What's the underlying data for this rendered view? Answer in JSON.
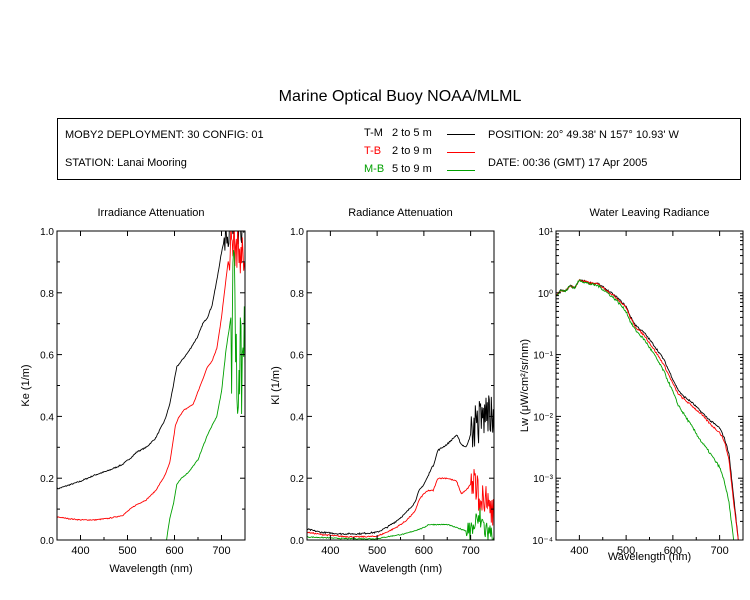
{
  "title": "Marine Optical Buoy NOAA/MLML",
  "info": {
    "deployment": "MOBY2 DEPLOYMENT: 30 CONFIG: 01",
    "station": "STATION: Lanai Mooring",
    "position": "POSITION: 20° 49.38' N   157° 10.93' W",
    "date": "DATE: 00:36 (GMT) 17 Apr 2005"
  },
  "legend": [
    {
      "code": "T-M",
      "range": "2 to 5  m",
      "color": "#000000"
    },
    {
      "code": "T-B",
      "range": "2 to 9  m",
      "color": "#ff0000"
    },
    {
      "code": "M-B",
      "range": "5 to 9  m",
      "color": "#00a000"
    }
  ],
  "chart_data": [
    {
      "type": "line",
      "title": "Irradiance Attenuation",
      "xlabel": "Wavelength (nm)",
      "ylabel": "Ke  (1/m)",
      "xlim": [
        350,
        750
      ],
      "ylim": [
        0,
        1.0
      ],
      "xticks": [
        400,
        500,
        600,
        700
      ],
      "yticks": [
        0.0,
        0.2,
        0.4,
        0.6,
        0.8,
        1.0
      ],
      "ytick_labels": [
        "0.0",
        "0.2",
        "0.4",
        "0.6",
        "0.8",
        "1.0"
      ],
      "series": [
        {
          "name": "T-M",
          "color": "#000000",
          "noise": 0.004,
          "noise_above": 705,
          "noise_amp": 0.05,
          "x": [
            350,
            370,
            400,
            430,
            460,
            490,
            510,
            520,
            540,
            560,
            580,
            590,
            600,
            605,
            615,
            630,
            650,
            660,
            670,
            680,
            690,
            700,
            710,
            720,
            730,
            740,
            750
          ],
          "y": [
            0.165,
            0.175,
            0.19,
            0.21,
            0.225,
            0.245,
            0.27,
            0.285,
            0.3,
            0.33,
            0.39,
            0.44,
            0.52,
            0.56,
            0.58,
            0.61,
            0.66,
            0.7,
            0.72,
            0.76,
            0.84,
            0.93,
            1.0,
            1.0,
            1.0,
            1.0,
            1.0
          ]
        },
        {
          "name": "T-B",
          "color": "#ff0000",
          "noise": 0.003,
          "noise_above": 715,
          "noise_amp": 0.07,
          "x": [
            350,
            370,
            400,
            430,
            460,
            490,
            510,
            520,
            540,
            560,
            580,
            590,
            598,
            602,
            610,
            620,
            640,
            660,
            670,
            680,
            690,
            700,
            710,
            720,
            730,
            740,
            750
          ],
          "y": [
            0.075,
            0.07,
            0.065,
            0.065,
            0.07,
            0.08,
            0.105,
            0.115,
            0.13,
            0.16,
            0.21,
            0.25,
            0.33,
            0.37,
            0.4,
            0.42,
            0.44,
            0.52,
            0.56,
            0.58,
            0.62,
            0.72,
            0.85,
            0.97,
            0.95,
            0.93,
            0.9
          ]
        },
        {
          "name": "M-B",
          "color": "#00a000",
          "noise": 0.003,
          "noise_above": 720,
          "noise_amp": 0.28,
          "x": [
            583,
            590,
            598,
            605,
            615,
            630,
            650,
            660,
            670,
            680,
            690,
            700,
            710,
            720,
            730,
            740,
            750
          ],
          "y": [
            0.0,
            0.07,
            0.12,
            0.18,
            0.2,
            0.22,
            0.26,
            0.3,
            0.34,
            0.37,
            0.4,
            0.48,
            0.62,
            0.72,
            0.7,
            0.6,
            0.55
          ]
        }
      ]
    },
    {
      "type": "line",
      "title": "Radiance Attenuation",
      "xlabel": "Wavelength (nm)",
      "ylabel": "Kl  (1/m)",
      "xlim": [
        350,
        750
      ],
      "ylim": [
        0,
        1.0
      ],
      "xticks": [
        400,
        500,
        600,
        700
      ],
      "yticks": [
        0.0,
        0.2,
        0.4,
        0.6,
        0.8,
        1.0
      ],
      "ytick_labels": [
        "0.0",
        "0.2",
        "0.4",
        "0.6",
        "0.8",
        "1.0"
      ],
      "series": [
        {
          "name": "T-M",
          "color": "#000000",
          "noise": 0.005,
          "noise_above": 700,
          "noise_amp": 0.08,
          "x": [
            350,
            380,
            420,
            460,
            500,
            520,
            540,
            560,
            580,
            590,
            600,
            610,
            615,
            620,
            630,
            650,
            670,
            680,
            690,
            700,
            710,
            720,
            730,
            740,
            750
          ],
          "y": [
            0.035,
            0.025,
            0.02,
            0.02,
            0.025,
            0.04,
            0.06,
            0.085,
            0.12,
            0.16,
            0.18,
            0.21,
            0.23,
            0.24,
            0.29,
            0.31,
            0.34,
            0.31,
            0.3,
            0.34,
            0.38,
            0.38,
            0.4,
            0.42,
            0.34
          ]
        },
        {
          "name": "T-B",
          "color": "#ff0000",
          "noise": 0.004,
          "noise_above": 700,
          "noise_amp": 0.06,
          "x": [
            350,
            380,
            420,
            460,
            500,
            520,
            540,
            560,
            580,
            590,
            600,
            610,
            620,
            630,
            650,
            670,
            680,
            690,
            700,
            710,
            720,
            730,
            740,
            750
          ],
          "y": [
            0.025,
            0.018,
            0.012,
            0.01,
            0.012,
            0.025,
            0.04,
            0.06,
            0.09,
            0.13,
            0.15,
            0.16,
            0.16,
            0.2,
            0.2,
            0.19,
            0.15,
            0.16,
            0.18,
            0.17,
            0.14,
            0.11,
            0.12,
            0.1
          ]
        },
        {
          "name": "M-B",
          "color": "#00a000",
          "noise": 0.003,
          "noise_above": 690,
          "noise_amp": 0.04,
          "x": [
            350,
            380,
            420,
            460,
            500,
            520,
            540,
            560,
            580,
            600,
            610,
            620,
            630,
            650,
            670,
            690,
            700,
            710,
            720,
            730,
            740,
            750
          ],
          "y": [
            0.01,
            0.008,
            0.005,
            0.004,
            0.004,
            0.01,
            0.015,
            0.02,
            0.03,
            0.04,
            0.05,
            0.05,
            0.05,
            0.05,
            0.04,
            0.03,
            0.03,
            0.05,
            0.07,
            0.04,
            0.02,
            0.01
          ]
        }
      ]
    },
    {
      "type": "line",
      "title": "Water Leaving Radiance",
      "xlabel": "Wavelength (nm)",
      "ylabel": "Lw (μW/cm²/sr/nm)",
      "scale": "log",
      "xlim": [
        350,
        750
      ],
      "ylim": [
        0.0001,
        10
      ],
      "xticks": [
        400,
        500,
        600,
        700
      ],
      "yticks": [
        0.0001,
        0.001,
        0.01,
        0.1,
        1,
        10
      ],
      "ytick_labels": [
        "10⁻⁴",
        "10⁻³",
        "10⁻²",
        "10⁻¹",
        "10⁰",
        "10¹"
      ],
      "series": [
        {
          "name": "T-M",
          "color": "#000000",
          "noise": 0.03,
          "x": [
            350,
            360,
            370,
            380,
            390,
            400,
            410,
            420,
            440,
            460,
            480,
            500,
            510,
            520,
            540,
            560,
            580,
            600,
            610,
            620,
            640,
            660,
            680,
            700,
            710,
            720,
            730,
            740
          ],
          "y": [
            0.9,
            1.1,
            1.05,
            1.3,
            1.2,
            1.6,
            1.55,
            1.45,
            1.4,
            1.1,
            0.85,
            0.6,
            0.4,
            0.3,
            0.22,
            0.14,
            0.085,
            0.04,
            0.028,
            0.022,
            0.017,
            0.012,
            0.0085,
            0.0065,
            0.0045,
            0.0025,
            0.0005,
            0.0001
          ]
        },
        {
          "name": "T-B",
          "color": "#ff0000",
          "noise": 0.03,
          "x": [
            350,
            360,
            370,
            380,
            390,
            400,
            410,
            420,
            440,
            460,
            480,
            500,
            510,
            520,
            540,
            560,
            580,
            600,
            610,
            620,
            640,
            660,
            680,
            700,
            710,
            720,
            730,
            740
          ],
          "y": [
            0.9,
            1.1,
            1.05,
            1.3,
            1.2,
            1.6,
            1.55,
            1.45,
            1.38,
            1.08,
            0.82,
            0.58,
            0.38,
            0.28,
            0.2,
            0.12,
            0.07,
            0.034,
            0.024,
            0.02,
            0.015,
            0.011,
            0.0075,
            0.0055,
            0.004,
            0.002,
            0.0004,
            0.0001
          ]
        },
        {
          "name": "M-B",
          "color": "#00a000",
          "noise": 0.04,
          "x": [
            350,
            360,
            370,
            380,
            390,
            400,
            410,
            420,
            440,
            460,
            480,
            500,
            510,
            520,
            540,
            560,
            580,
            600,
            610,
            620,
            640,
            660,
            680,
            700,
            710,
            720,
            730
          ],
          "y": [
            0.9,
            1.1,
            1.05,
            1.3,
            1.2,
            1.6,
            1.5,
            1.4,
            1.3,
            1.0,
            0.75,
            0.5,
            0.33,
            0.25,
            0.17,
            0.1,
            0.055,
            0.025,
            0.016,
            0.012,
            0.007,
            0.004,
            0.0025,
            0.0015,
            0.0009,
            0.0004,
            0.0001
          ]
        }
      ]
    }
  ]
}
